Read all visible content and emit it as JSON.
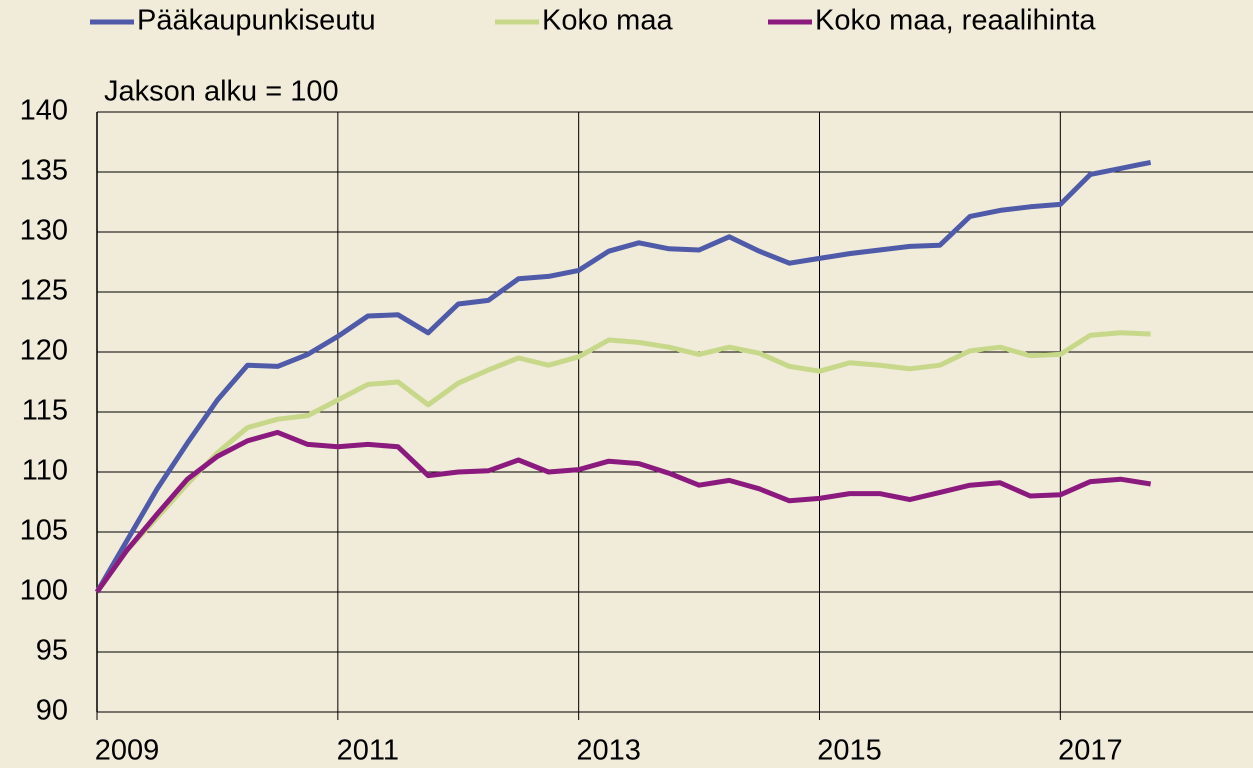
{
  "chart_data": {
    "type": "line",
    "annotation": "Jakson alku = 100",
    "x": [
      2009,
      2009.25,
      2009.5,
      2009.75,
      2010,
      2010.25,
      2010.5,
      2010.75,
      2011,
      2011.25,
      2011.5,
      2011.75,
      2012,
      2012.25,
      2012.5,
      2012.75,
      2013,
      2013.25,
      2013.5,
      2013.75,
      2014,
      2014.25,
      2014.5,
      2014.75,
      2015,
      2015.25,
      2015.5,
      2015.75,
      2016,
      2016.25,
      2016.5,
      2016.75,
      2017,
      2017.25,
      2017.5,
      2017.75
    ],
    "series": [
      {
        "name": "Pääkaupunkiseutu",
        "color": "#4f5aa8",
        "values": [
          100,
          104.3,
          108.6,
          112.4,
          116.0,
          118.9,
          118.8,
          119.8,
          121.3,
          123.0,
          123.1,
          121.6,
          124.0,
          124.3,
          126.1,
          126.3,
          126.8,
          128.4,
          129.1,
          128.6,
          128.5,
          129.6,
          128.4,
          127.4,
          127.8,
          128.2,
          128.5,
          128.8,
          128.9,
          131.3,
          131.8,
          132.1,
          132.3,
          134.8,
          135.3,
          135.8
        ]
      },
      {
        "name": "Koko maa",
        "color": "#c8d88a",
        "values": [
          100,
          103.5,
          106.2,
          109.0,
          111.6,
          113.7,
          114.4,
          114.7,
          116.0,
          117.3,
          117.5,
          115.6,
          117.4,
          118.5,
          119.5,
          118.9,
          119.6,
          121.0,
          120.8,
          120.4,
          119.8,
          120.4,
          119.9,
          118.8,
          118.4,
          119.1,
          118.9,
          118.6,
          118.9,
          120.1,
          120.4,
          119.7,
          119.8,
          121.4,
          121.6,
          121.5
        ]
      },
      {
        "name": "Koko maa, reaalihinta",
        "color": "#8b1a7e",
        "values": [
          100,
          103.5,
          106.5,
          109.4,
          111.3,
          112.6,
          113.3,
          112.3,
          112.1,
          112.3,
          112.1,
          109.7,
          110.0,
          110.1,
          111.0,
          110.0,
          110.2,
          110.9,
          110.7,
          109.9,
          108.9,
          109.3,
          108.6,
          107.6,
          107.8,
          108.2,
          108.2,
          107.7,
          108.3,
          108.9,
          109.1,
          108.0,
          108.1,
          109.2,
          109.4,
          109.0
        ]
      }
    ],
    "xlim": [
      2009,
      2018.6
    ],
    "xticks": [
      2009,
      2011,
      2013,
      2015,
      2017
    ],
    "ylim": [
      90,
      140
    ],
    "yticks": [
      90,
      95,
      100,
      105,
      110,
      115,
      120,
      125,
      130,
      135,
      140
    ],
    "grid": true
  }
}
